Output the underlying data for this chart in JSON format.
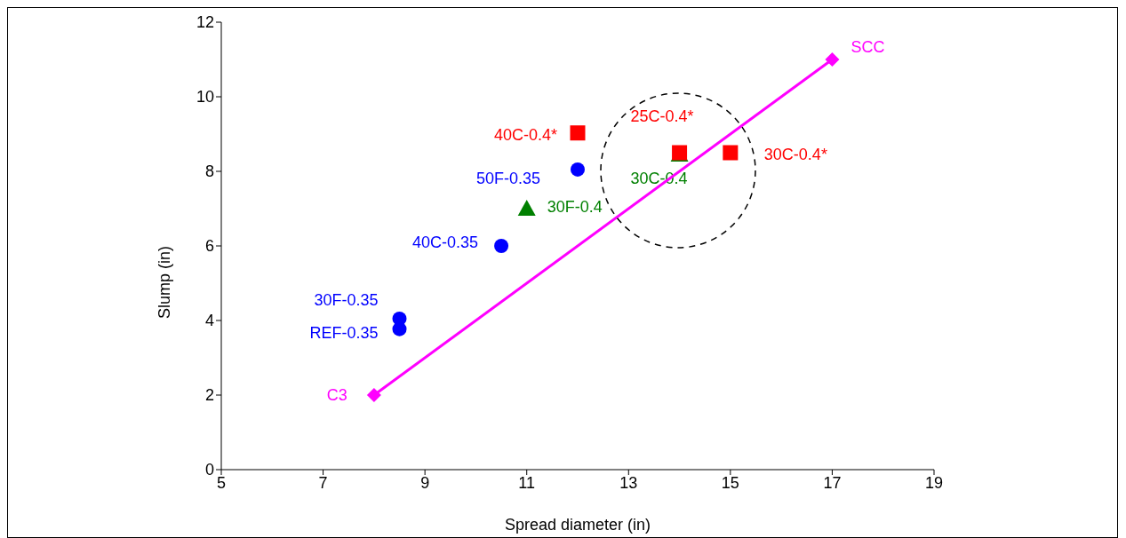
{
  "chart_data": {
    "type": "scatter",
    "xlabel": "Spread diameter (in)",
    "ylabel": "Slump (in)",
    "xlim": [
      5,
      19
    ],
    "xticks": [
      5,
      7,
      9,
      11,
      13,
      15,
      17,
      19
    ],
    "ylim": [
      0,
      12
    ],
    "yticks": [
      0,
      2,
      4,
      6,
      8,
      10,
      12
    ],
    "grid": false,
    "legend": false,
    "series": [
      {
        "color": "#0000ff",
        "marker": "circle",
        "x": [
          12,
          10.5,
          8.5,
          8.5
        ],
        "values": [
          8.05,
          6,
          4.05,
          3.77
        ],
        "value_labels": [
          "50F-0.35",
          "40C-0.35",
          "30F-0.35",
          "REF-0.35"
        ]
      },
      {
        "color": "#008000",
        "marker": "triangle",
        "x": [
          11,
          14
        ],
        "values": [
          7,
          8.45
        ],
        "value_labels": [
          "30F-0.4",
          "30C-0.4"
        ]
      },
      {
        "color": "#ff0000",
        "marker": "square",
        "x": [
          12,
          14,
          15
        ],
        "values": [
          9.03,
          8.5,
          8.5
        ],
        "value_labels": [
          "40C-0.4*",
          "25C-0.4*",
          "30C-0.4*"
        ]
      },
      {
        "type": "line",
        "color": "#ff00ff",
        "marker": "diamond",
        "line_style": "solid",
        "x": [
          8,
          17
        ],
        "values": [
          2,
          11
        ],
        "value_labels": [
          "C3",
          "SCC"
        ]
      }
    ]
  }
}
